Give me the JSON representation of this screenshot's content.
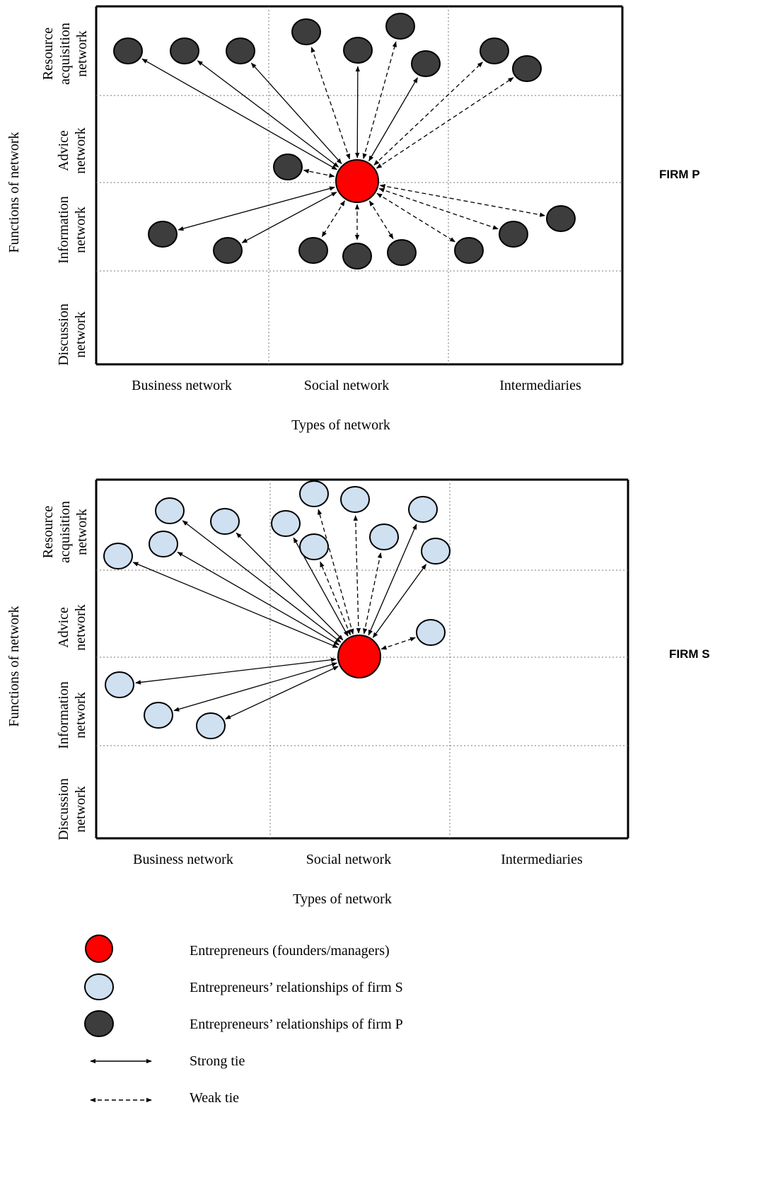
{
  "panels": [
    {
      "id": "firm-p",
      "firm_label": "FIRM P",
      "y_axis_title": "Functions of network",
      "x_axis_title": "Types of network",
      "rows": [
        [
          "Resource",
          "acquisition",
          "network"
        ],
        [
          "Advice",
          "network"
        ],
        [
          "Information",
          "network"
        ],
        [
          "Discussion",
          "network"
        ]
      ],
      "columns": [
        "Business network",
        "Social network",
        "Intermediaries"
      ],
      "node_type": "firm-p",
      "ties": [
        {
          "row": "Resource acquisition network",
          "column": "Business network",
          "tie": "strong"
        },
        {
          "row": "Resource acquisition network",
          "column": "Business network",
          "tie": "strong"
        },
        {
          "row": "Resource acquisition network",
          "column": "Business network",
          "tie": "strong"
        },
        {
          "row": "Resource acquisition network",
          "column": "Social network",
          "tie": "weak"
        },
        {
          "row": "Resource acquisition network",
          "column": "Social network",
          "tie": "strong"
        },
        {
          "row": "Resource acquisition network",
          "column": "Social network",
          "tie": "weak"
        },
        {
          "row": "Resource acquisition network",
          "column": "Social network",
          "tie": "strong"
        },
        {
          "row": "Resource acquisition network",
          "column": "Intermediaries",
          "tie": "weak"
        },
        {
          "row": "Resource acquisition network",
          "column": "Intermediaries",
          "tie": "weak"
        },
        {
          "row": "Advice network",
          "column": "Social network",
          "tie": "weak"
        },
        {
          "row": "Information network",
          "column": "Business network",
          "tie": "strong"
        },
        {
          "row": "Information network",
          "column": "Business network",
          "tie": "strong"
        },
        {
          "row": "Information network",
          "column": "Social network",
          "tie": "weak"
        },
        {
          "row": "Information network",
          "column": "Social network",
          "tie": "weak"
        },
        {
          "row": "Information network",
          "column": "Social network",
          "tie": "weak"
        },
        {
          "row": "Information network",
          "column": "Intermediaries",
          "tie": "weak"
        },
        {
          "row": "Information network",
          "column": "Intermediaries",
          "tie": "weak"
        },
        {
          "row": "Information network",
          "column": "Intermediaries",
          "tie": "weak"
        }
      ]
    },
    {
      "id": "firm-s",
      "firm_label": "FIRM S",
      "y_axis_title": "Functions of network",
      "x_axis_title": "Types of network",
      "rows": [
        [
          "Resource",
          "acquisition",
          "network"
        ],
        [
          "Advice",
          "network"
        ],
        [
          "Information",
          "network"
        ],
        [
          "Discussion",
          "network"
        ]
      ],
      "columns": [
        "Business network",
        "Social network",
        "Intermediaries"
      ],
      "node_type": "firm-s",
      "ties": [
        {
          "row": "Resource acquisition network",
          "column": "Business network",
          "tie": "strong"
        },
        {
          "row": "Resource acquisition network",
          "column": "Business network",
          "tie": "strong"
        },
        {
          "row": "Resource acquisition network",
          "column": "Business network",
          "tie": "strong"
        },
        {
          "row": "Resource acquisition network",
          "column": "Business network",
          "tie": "strong"
        },
        {
          "row": "Resource acquisition network",
          "column": "Social network",
          "tie": "strong"
        },
        {
          "row": "Resource acquisition network",
          "column": "Social network",
          "tie": "weak"
        },
        {
          "row": "Resource acquisition network",
          "column": "Social network",
          "tie": "weak"
        },
        {
          "row": "Resource acquisition network",
          "column": "Social network",
          "tie": "weak"
        },
        {
          "row": "Resource acquisition network",
          "column": "Social network",
          "tie": "weak"
        },
        {
          "row": "Resource acquisition network",
          "column": "Social network",
          "tie": "strong"
        },
        {
          "row": "Resource acquisition network",
          "column": "Social network",
          "tie": "strong"
        },
        {
          "row": "Advice network",
          "column": "Social network",
          "tie": "weak"
        },
        {
          "row": "Information network",
          "column": "Business network",
          "tie": "strong"
        },
        {
          "row": "Information network",
          "column": "Business network",
          "tie": "strong"
        },
        {
          "row": "Information network",
          "column": "Business network",
          "tie": "strong"
        }
      ]
    }
  ],
  "legend": [
    {
      "symbol": "entrepreneur",
      "label": "Entrepreneurs (founders/managers)"
    },
    {
      "symbol": "firm-s",
      "label": "Entrepreneurs’ relationships of firm S"
    },
    {
      "symbol": "firm-p",
      "label": "Entrepreneurs’ relationships of firm P"
    },
    {
      "symbol": "strong-tie",
      "label": "Strong tie"
    },
    {
      "symbol": "weak-tie",
      "label": "Weak tie"
    }
  ],
  "colors": {
    "entrepreneur": "#ff0000",
    "firm-s": "#cfe0f1",
    "firm-p": "#3d3d3d",
    "line": "#000000",
    "grid": "#777777"
  }
}
